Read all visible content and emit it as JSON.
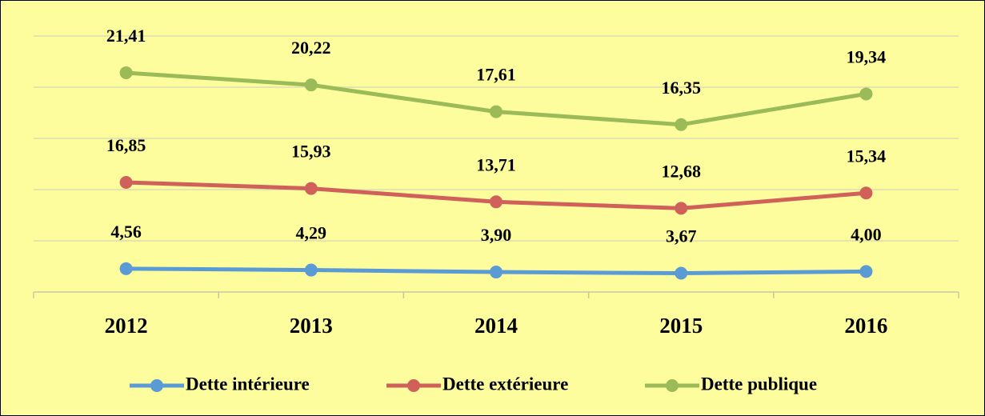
{
  "chart_data": {
    "type": "line",
    "stacked": true,
    "categories": [
      "2012",
      "2013",
      "2014",
      "2015",
      "2016"
    ],
    "ylim": [
      0,
      50
    ],
    "yticks": [
      0,
      10,
      20,
      30,
      40,
      50
    ],
    "grid": true,
    "legend": "bottom",
    "series": [
      {
        "name": "Dette intérieure",
        "color": "#5b9bd5",
        "values": [
          4.56,
          4.29,
          3.9,
          3.67,
          4.0
        ],
        "value_labels": [
          "4,56",
          "4,29",
          "3,90",
          "3,67",
          "4,00"
        ]
      },
      {
        "name": "Dette extérieure",
        "color": "#d0605a",
        "values": [
          16.85,
          15.93,
          13.71,
          12.68,
          15.34
        ],
        "value_labels": [
          "16,85",
          "15,93",
          "13,71",
          "12,68",
          "15,34"
        ]
      },
      {
        "name": "Dette publique",
        "color": "#9bbb59",
        "values": [
          21.41,
          20.22,
          17.61,
          16.35,
          19.34
        ],
        "value_labels": [
          "21,41",
          "20,22",
          "17,61",
          "16,35",
          "19,34"
        ]
      }
    ]
  }
}
